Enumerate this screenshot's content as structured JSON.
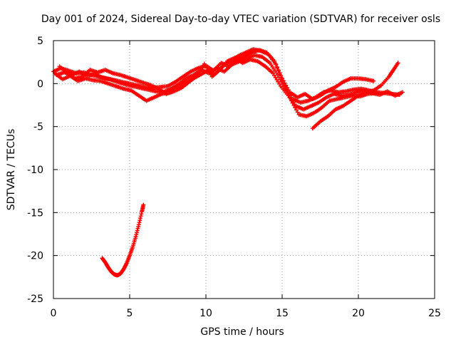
{
  "chart_data": {
    "type": "scatter",
    "title": "Day 001 of 2024, Sidereal Day-to-day VTEC variation (SDTVAR) for receiver osls",
    "xlabel": "GPS time / hours",
    "ylabel": "SDTVAR / TECUs",
    "xlim": [
      0,
      25
    ],
    "ylim": [
      -25,
      5
    ],
    "xticks": [
      0,
      5,
      10,
      15,
      20,
      25
    ],
    "yticks": [
      5,
      0,
      -5,
      -10,
      -15,
      -20,
      -25
    ],
    "grid": true,
    "marker": "plus",
    "color": "#ff0000",
    "series": [
      {
        "name": "track-a",
        "points": [
          [
            0.0,
            1.4
          ],
          [
            0.5,
            1.8
          ],
          [
            1.0,
            1.5
          ],
          [
            1.5,
            1.2
          ],
          [
            2.0,
            1.3
          ],
          [
            2.5,
            1.0
          ],
          [
            3.0,
            0.8
          ],
          [
            3.5,
            0.6
          ],
          [
            4.0,
            0.4
          ],
          [
            4.5,
            0.2
          ],
          [
            5.0,
            0.0
          ],
          [
            5.5,
            -0.2
          ],
          [
            6.0,
            -0.4
          ],
          [
            6.5,
            -0.5
          ],
          [
            7.0,
            -0.4
          ],
          [
            7.5,
            -0.3
          ],
          [
            8.0,
            0.2
          ],
          [
            8.5,
            0.8
          ],
          [
            9.0,
            1.4
          ],
          [
            9.5,
            1.8
          ],
          [
            10.0,
            2.1
          ],
          [
            10.5,
            1.5
          ],
          [
            11.0,
            2.4
          ],
          [
            11.5,
            2.0
          ],
          [
            12.0,
            2.8
          ],
          [
            12.5,
            3.2
          ],
          [
            13.0,
            3.6
          ],
          [
            13.5,
            3.9
          ],
          [
            14.0,
            3.6
          ],
          [
            14.5,
            2.6
          ],
          [
            15.0,
            0.6
          ],
          [
            15.5,
            -1.0
          ],
          [
            16.0,
            -1.6
          ],
          [
            16.5,
            -1.2
          ],
          [
            17.0,
            -1.8
          ],
          [
            17.5,
            -1.4
          ],
          [
            18.0,
            -0.8
          ],
          [
            18.5,
            -0.4
          ],
          [
            19.0,
            0.2
          ],
          [
            19.5,
            0.6
          ],
          [
            20.0,
            0.6
          ],
          [
            20.5,
            0.5
          ],
          [
            21.0,
            0.3
          ]
        ]
      },
      {
        "name": "track-b",
        "points": [
          [
            0.2,
            1.0
          ],
          [
            0.7,
            1.3
          ],
          [
            1.2,
            1.0
          ],
          [
            1.7,
            1.4
          ],
          [
            2.2,
            0.9
          ],
          [
            2.7,
            1.1
          ],
          [
            3.2,
            0.7
          ],
          [
            3.7,
            0.5
          ],
          [
            4.2,
            0.2
          ],
          [
            4.7,
            -0.1
          ],
          [
            5.2,
            -0.3
          ],
          [
            5.7,
            -0.5
          ],
          [
            6.2,
            -0.7
          ],
          [
            6.7,
            -0.9
          ],
          [
            7.2,
            -1.0
          ],
          [
            7.7,
            -0.6
          ],
          [
            8.2,
            -0.1
          ],
          [
            8.7,
            0.6
          ],
          [
            9.2,
            1.0
          ],
          [
            9.7,
            1.6
          ],
          [
            10.2,
            1.2
          ],
          [
            10.7,
            1.8
          ],
          [
            11.2,
            1.4
          ],
          [
            11.7,
            2.2
          ],
          [
            12.2,
            2.6
          ],
          [
            12.7,
            3.0
          ],
          [
            13.2,
            3.3
          ],
          [
            13.7,
            3.1
          ],
          [
            14.2,
            2.4
          ],
          [
            14.7,
            1.0
          ],
          [
            15.2,
            -0.6
          ],
          [
            15.7,
            -1.8
          ],
          [
            16.2,
            -2.2
          ],
          [
            16.7,
            -2.0
          ],
          [
            17.2,
            -1.6
          ],
          [
            17.7,
            -1.0
          ],
          [
            18.2,
            -0.8
          ],
          [
            18.7,
            -1.0
          ],
          [
            19.2,
            -0.9
          ],
          [
            19.7,
            -0.7
          ],
          [
            20.2,
            -0.6
          ],
          [
            20.7,
            -0.8
          ],
          [
            21.2,
            -1.0
          ],
          [
            21.7,
            -1.1
          ],
          [
            22.2,
            -1.2
          ],
          [
            22.7,
            -1.3
          ]
        ]
      },
      {
        "name": "track-c",
        "points": [
          [
            0.4,
            2.0
          ],
          [
            0.9,
            1.2
          ],
          [
            1.4,
            0.6
          ],
          [
            1.9,
            0.8
          ],
          [
            2.4,
            1.6
          ],
          [
            2.9,
            1.3
          ],
          [
            3.4,
            1.6
          ],
          [
            3.9,
            1.2
          ],
          [
            4.4,
            1.0
          ],
          [
            4.9,
            0.7
          ],
          [
            5.4,
            0.4
          ],
          [
            5.9,
            0.1
          ],
          [
            6.4,
            -0.2
          ],
          [
            6.9,
            -0.6
          ],
          [
            7.4,
            -1.2
          ],
          [
            7.9,
            -0.9
          ],
          [
            8.4,
            -0.5
          ],
          [
            8.9,
            0.2
          ],
          [
            9.4,
            0.9
          ],
          [
            9.9,
            2.3
          ],
          [
            10.4,
            0.8
          ],
          [
            10.9,
            1.6
          ],
          [
            11.4,
            2.6
          ],
          [
            11.9,
            3.0
          ],
          [
            12.4,
            2.4
          ],
          [
            12.9,
            2.8
          ],
          [
            13.4,
            2.6
          ],
          [
            13.9,
            2.0
          ],
          [
            14.4,
            1.2
          ],
          [
            14.9,
            -0.3
          ],
          [
            15.4,
            -1.4
          ],
          [
            15.9,
            -2.6
          ],
          [
            16.4,
            -3.0
          ],
          [
            16.9,
            -2.6
          ],
          [
            17.4,
            -2.2
          ],
          [
            17.9,
            -1.6
          ],
          [
            18.4,
            -1.2
          ],
          [
            18.9,
            -1.4
          ],
          [
            19.4,
            -1.3
          ],
          [
            19.9,
            -1.0
          ],
          [
            20.4,
            -0.8
          ],
          [
            20.9,
            -1.1
          ],
          [
            21.4,
            -1.3
          ],
          [
            21.9,
            -0.9
          ],
          [
            22.4,
            -1.4
          ],
          [
            22.9,
            -1.0
          ]
        ]
      },
      {
        "name": "track-d",
        "points": [
          [
            0.1,
            1.2
          ],
          [
            0.6,
            0.5
          ],
          [
            1.1,
            0.9
          ],
          [
            1.6,
            0.3
          ],
          [
            2.1,
            0.6
          ],
          [
            2.6,
            0.4
          ],
          [
            3.1,
            0.3
          ],
          [
            3.6,
            0.0
          ],
          [
            4.1,
            -0.3
          ],
          [
            4.6,
            -0.6
          ],
          [
            5.1,
            -0.8
          ],
          [
            5.6,
            -1.4
          ],
          [
            6.1,
            -2.0
          ],
          [
            6.6,
            -1.6
          ],
          [
            7.1,
            -1.2
          ],
          [
            7.6,
            -1.0
          ],
          [
            8.1,
            -0.6
          ],
          [
            8.6,
            0.1
          ],
          [
            9.1,
            0.5
          ],
          [
            9.6,
            1.0
          ],
          [
            10.1,
            1.5
          ],
          [
            10.6,
            1.1
          ],
          [
            11.1,
            2.0
          ],
          [
            11.6,
            2.6
          ],
          [
            12.1,
            3.2
          ],
          [
            12.6,
            3.6
          ],
          [
            13.1,
            4.0
          ],
          [
            13.6,
            3.8
          ],
          [
            14.1,
            3.4
          ],
          [
            14.6,
            2.2
          ],
          [
            15.1,
            0.0
          ],
          [
            15.6,
            -2.0
          ],
          [
            16.1,
            -3.6
          ],
          [
            16.6,
            -3.8
          ],
          [
            17.1,
            -3.4
          ],
          [
            17.6,
            -2.8
          ],
          [
            18.1,
            -2.0
          ],
          [
            18.6,
            -1.8
          ],
          [
            19.1,
            -1.6
          ],
          [
            19.6,
            -1.4
          ],
          [
            20.1,
            -1.5
          ],
          [
            20.6,
            -1.2
          ],
          [
            21.1,
            -1.1
          ]
        ]
      },
      {
        "name": "track-e",
        "points": [
          [
            17.0,
            -5.2
          ],
          [
            17.5,
            -4.4
          ],
          [
            18.0,
            -3.8
          ],
          [
            18.5,
            -3.0
          ],
          [
            19.0,
            -2.6
          ],
          [
            19.5,
            -2.0
          ],
          [
            20.0,
            -1.4
          ],
          [
            20.5,
            -1.0
          ],
          [
            21.0,
            -0.8
          ],
          [
            21.5,
            -0.2
          ],
          [
            22.0,
            0.8
          ],
          [
            22.3,
            1.6
          ],
          [
            22.6,
            2.4
          ]
        ]
      },
      {
        "name": "track-f",
        "points": [
          [
            3.2,
            -20.3
          ],
          [
            3.4,
            -20.8
          ],
          [
            3.6,
            -21.4
          ],
          [
            3.8,
            -21.9
          ],
          [
            4.0,
            -22.2
          ],
          [
            4.2,
            -22.3
          ],
          [
            4.4,
            -22.1
          ],
          [
            4.6,
            -21.6
          ],
          [
            4.8,
            -20.9
          ],
          [
            5.0,
            -20.0
          ],
          [
            5.2,
            -19.0
          ],
          [
            5.4,
            -17.8
          ],
          [
            5.6,
            -16.4
          ],
          [
            5.8,
            -14.9
          ],
          [
            5.9,
            -14.1
          ]
        ]
      }
    ]
  }
}
